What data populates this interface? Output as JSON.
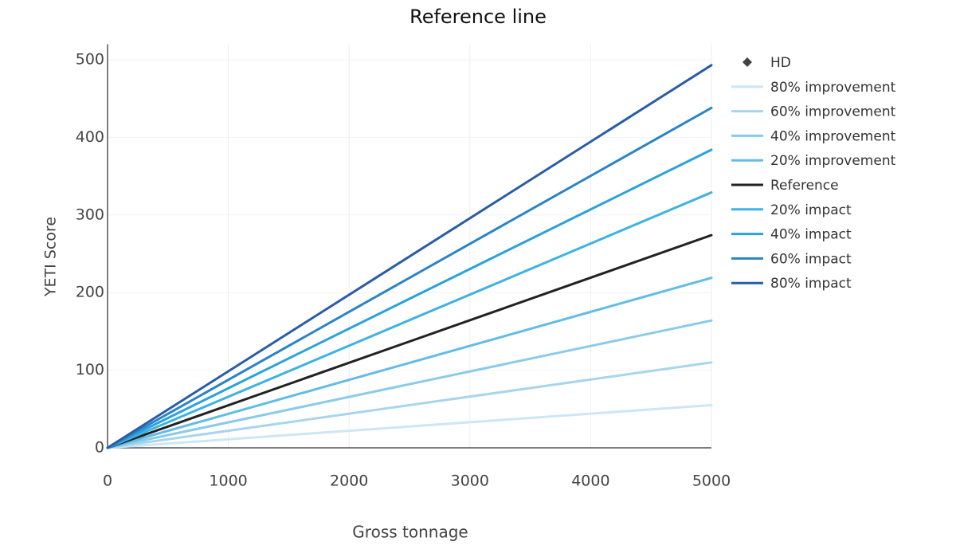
{
  "chart_data": {
    "type": "line",
    "title": "Reference line",
    "x_label": "Gross tonnage",
    "y_label": "YETI Score",
    "x": [
      0,
      5000
    ],
    "xlim": [
      0,
      5000
    ],
    "xticks": [
      0,
      1000,
      2000,
      3000,
      4000,
      5000
    ],
    "ylim": [
      0,
      520
    ],
    "yticks": [
      0,
      100,
      200,
      300,
      400,
      500
    ],
    "grid": true,
    "legend": "right",
    "series": [
      {
        "name": "HD",
        "color": "#444444",
        "marker": "diamond",
        "values": [
          null,
          null
        ]
      },
      {
        "name": "80% improvement",
        "color": "#cde6f5",
        "values": [
          0,
          55
        ]
      },
      {
        "name": "60% improvement",
        "color": "#a8d5ee",
        "values": [
          0,
          110
        ]
      },
      {
        "name": "40% improvement",
        "color": "#8acaea",
        "values": [
          0,
          164
        ]
      },
      {
        "name": "20% improvement",
        "color": "#62bce6",
        "values": [
          0,
          219
        ]
      },
      {
        "name": "Reference",
        "color": "#222222",
        "values": [
          0,
          274
        ]
      },
      {
        "name": "20% impact",
        "color": "#3db2e3",
        "values": [
          0,
          329
        ]
      },
      {
        "name": "40% impact",
        "color": "#2aa2db",
        "values": [
          0,
          384
        ]
      },
      {
        "name": "60% impact",
        "color": "#2a84c7",
        "values": [
          0,
          438
        ]
      },
      {
        "name": "80% impact",
        "color": "#2a5ca7",
        "values": [
          0,
          493
        ]
      }
    ]
  }
}
